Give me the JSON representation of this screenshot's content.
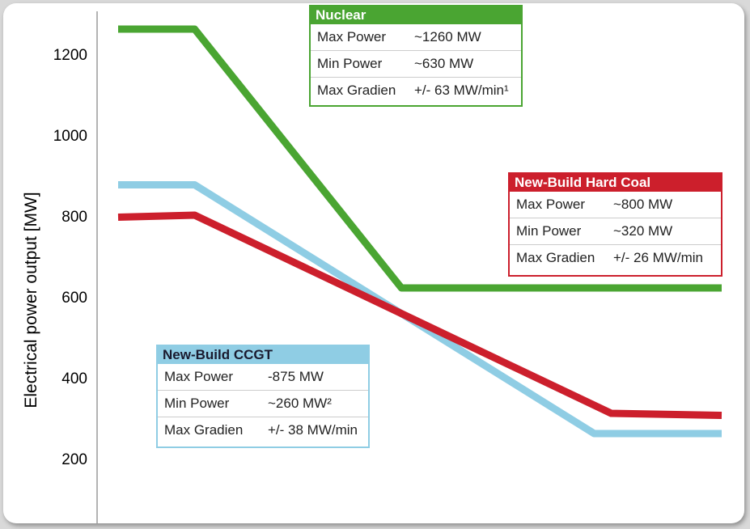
{
  "chart_data": {
    "type": "line",
    "ylabel": "Electrical power output [MW]",
    "xlabel": "",
    "ylim": [
      200,
      1300
    ],
    "yticks": [
      200,
      400,
      600,
      800,
      1000,
      1200
    ],
    "grid": false,
    "series": [
      {
        "name": "Nuclear",
        "color": "#4aa532",
        "points": [
          [
            0,
            1260
          ],
          [
            0.27,
            1260
          ],
          [
            1.0,
            620
          ],
          [
            2.13,
            620
          ]
        ]
      },
      {
        "name": "New-Build Hard Coal",
        "color": "#cc1f2c",
        "points": [
          [
            0,
            795
          ],
          [
            0.27,
            800
          ],
          [
            1.74,
            310
          ],
          [
            2.13,
            305
          ]
        ]
      },
      {
        "name": "New-Build CCGT",
        "color": "#8fcde4",
        "points": [
          [
            0,
            875
          ],
          [
            0.27,
            875
          ],
          [
            1.68,
            260
          ],
          [
            2.13,
            260
          ]
        ]
      }
    ],
    "legend_boxes": [
      {
        "title": "Nuclear",
        "color": "#4aa532",
        "rows": [
          {
            "label": "Max Power",
            "value": "~1260 MW"
          },
          {
            "label": "Min Power",
            "value": "~630 MW"
          },
          {
            "label": "Max Gradien",
            "value": "+/- 63 MW/min¹"
          }
        ]
      },
      {
        "title": "New-Build Hard Coal",
        "color": "#cc1f2c",
        "rows": [
          {
            "label": "Max Power",
            "value": "~800 MW"
          },
          {
            "label": "Min Power",
            "value": "~320 MW"
          },
          {
            "label": "Max Gradien",
            "value": "+/- 26 MW/min"
          }
        ]
      },
      {
        "title": "New-Build CCGT",
        "color": "#8fcde4",
        "rows": [
          {
            "label": "Max Power",
            "value": "-875 MW"
          },
          {
            "label": "Min Power",
            "value": "~260 MW²"
          },
          {
            "label": "Max Gradien",
            "value": "+/- 38 MW/min"
          }
        ]
      }
    ]
  }
}
